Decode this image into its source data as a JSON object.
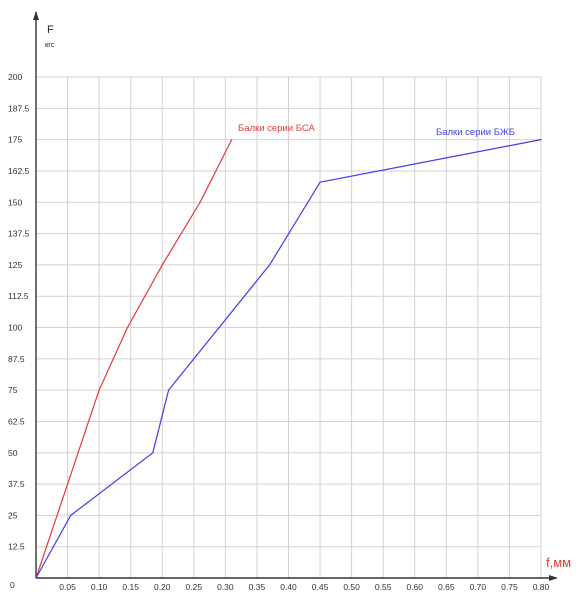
{
  "chart_data": {
    "type": "line",
    "title": "",
    "ylabel": "F",
    "yunit": "кгс",
    "xlabel": "f,мм",
    "xlim": [
      0,
      0.8
    ],
    "ylim": [
      0,
      200
    ],
    "grid": true,
    "x_ticks": [
      "0.05",
      "0.10",
      "0.15",
      "0.20",
      "0.25",
      "0.30",
      "0.35",
      "0.40",
      "0.45",
      "0.50",
      "0.55",
      "0.60",
      "0.65",
      "0.70",
      "0.75",
      "0.80"
    ],
    "y_ticks": [
      "12.5",
      "25",
      "37.5",
      "50",
      "62.5",
      "75",
      "87.5",
      "100",
      "112.5",
      "125",
      "137.5",
      "150",
      "162.5",
      "175",
      "187.5",
      "200"
    ],
    "origin_label": "0",
    "series": [
      {
        "name": "Балки серии БСА",
        "color": "#e53b3b",
        "x": [
          0,
          0.05,
          0.1,
          0.145,
          0.2,
          0.26,
          0.31
        ],
        "y": [
          0,
          37.5,
          75,
          100,
          125,
          150,
          175
        ]
      },
      {
        "name": "Балки серии БЖБ",
        "color": "#3f3fe6",
        "x": [
          0,
          0.055,
          0.185,
          0.21,
          0.37,
          0.45,
          0.8
        ],
        "y": [
          0,
          25,
          50,
          75,
          125,
          158,
          175
        ]
      }
    ]
  }
}
